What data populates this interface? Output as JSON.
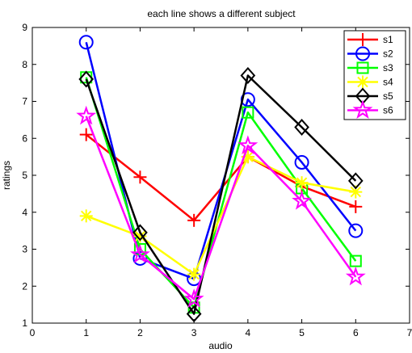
{
  "chart_data": {
    "type": "line",
    "title": "each line shows a different subject",
    "xlabel": "audio",
    "ylabel": "ratings",
    "xlim": [
      0,
      7
    ],
    "ylim": [
      1,
      9
    ],
    "xticks": [
      "0",
      "1",
      "2",
      "3",
      "4",
      "5",
      "6",
      "7"
    ],
    "yticks": [
      "1",
      "2",
      "3",
      "4",
      "5",
      "6",
      "7",
      "8",
      "9"
    ],
    "x": [
      1,
      2,
      3,
      4,
      5,
      6
    ],
    "grid": false,
    "legend_position": "top-right",
    "series": [
      {
        "name": "s1",
        "color": "#ff0000",
        "marker": "plus",
        "values": [
          6.1,
          4.95,
          3.78,
          5.5,
          4.7,
          4.15
        ]
      },
      {
        "name": "s2",
        "color": "#0000ff",
        "marker": "circle",
        "values": [
          8.6,
          2.75,
          2.2,
          7.05,
          5.35,
          3.5
        ]
      },
      {
        "name": "s3",
        "color": "#00ff00",
        "marker": "square",
        "values": [
          7.65,
          3.0,
          1.42,
          6.7,
          4.65,
          2.68
        ]
      },
      {
        "name": "s4",
        "color": "#ffff00",
        "marker": "asterisk",
        "values": [
          3.9,
          3.35,
          2.32,
          5.5,
          4.8,
          4.55
        ]
      },
      {
        "name": "s5",
        "color": "#000000",
        "marker": "diamond",
        "values": [
          7.6,
          3.45,
          1.25,
          7.7,
          6.3,
          4.85
        ]
      },
      {
        "name": "s6",
        "color": "#ff00ff",
        "marker": "star",
        "values": [
          6.6,
          2.85,
          1.65,
          5.8,
          4.3,
          2.25
        ]
      }
    ]
  }
}
